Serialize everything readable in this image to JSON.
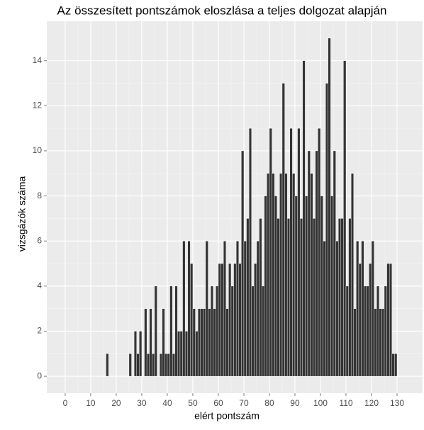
{
  "chart_data": {
    "type": "histogram",
    "title": "Az összesített pontszámok eloszlása a teljes dolgozat alapján",
    "xlabel": "elért pontszám",
    "ylabel": "vizsgázók száma",
    "color": "#333333",
    "bins": [
      0,
      1,
      2,
      3,
      4,
      5,
      6,
      7,
      8,
      9,
      10,
      11,
      12,
      13,
      14,
      15,
      16,
      17,
      18,
      19,
      20,
      21,
      22,
      23,
      24,
      25,
      26,
      27,
      28,
      29,
      30,
      31,
      32,
      33,
      34,
      35,
      36,
      37,
      38,
      39,
      40,
      41,
      42,
      43,
      44,
      45,
      46,
      47,
      48,
      49,
      50,
      51,
      52,
      53,
      54,
      55,
      56,
      57,
      58,
      59,
      60,
      61,
      62,
      63,
      64,
      65,
      66,
      67,
      68,
      69,
      70,
      71,
      72,
      73,
      74,
      75,
      76,
      77,
      78,
      79,
      80,
      81,
      82,
      83,
      84,
      85,
      86,
      87,
      88,
      89,
      90,
      91,
      92,
      93,
      94,
      95,
      96,
      97,
      98,
      99,
      100,
      101,
      102,
      103,
      104,
      105,
      106,
      107,
      108,
      109,
      110,
      111,
      112,
      113,
      114,
      115,
      116,
      117,
      118,
      119,
      120,
      121,
      122,
      123,
      124,
      125,
      126,
      127,
      128,
      129,
      130,
      131,
      132
    ],
    "values": [
      0,
      0,
      0,
      0,
      0,
      0,
      0,
      0,
      0,
      0,
      0,
      0,
      0,
      0,
      0,
      0,
      1,
      0,
      0,
      0,
      0,
      0,
      0,
      0,
      0,
      1,
      0,
      2,
      1,
      2,
      0,
      3,
      1,
      3,
      1,
      4,
      0,
      1,
      3,
      1,
      1,
      4,
      1,
      4,
      2,
      2,
      6,
      2,
      6,
      5,
      3,
      2,
      3,
      3,
      3,
      6,
      3,
      4,
      3,
      4,
      5,
      5,
      6,
      3,
      5,
      4,
      5,
      6,
      5,
      10,
      6,
      7,
      11,
      4,
      5,
      6,
      7,
      4,
      8,
      9,
      11,
      9,
      8,
      7,
      9,
      13,
      9,
      7,
      11,
      9,
      8,
      11,
      7,
      14,
      8,
      10,
      9,
      7,
      10,
      11,
      8,
      6,
      13,
      15,
      8,
      10,
      6,
      7,
      7,
      14,
      4,
      7,
      9,
      3,
      6,
      5,
      6,
      4,
      4,
      5,
      6,
      3,
      4,
      3,
      3,
      4,
      5,
      5,
      1,
      1,
      0,
      0
    ],
    "xlim": [
      -7.2,
      140
    ],
    "ylim": [
      -0.75,
      15.75
    ],
    "xticks": [
      0,
      10,
      20,
      30,
      40,
      50,
      60,
      70,
      80,
      90,
      100,
      110,
      120,
      130
    ],
    "yticks": [
      0,
      2,
      4,
      6,
      8,
      10,
      12,
      14
    ],
    "grid": true
  }
}
